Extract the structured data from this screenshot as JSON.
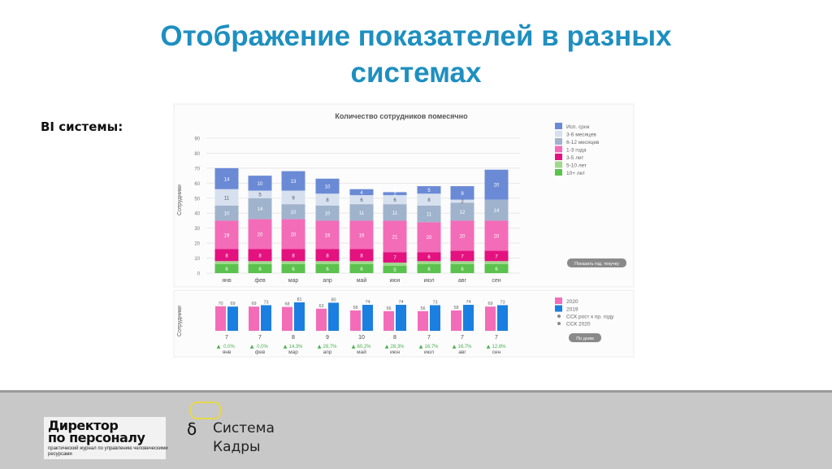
{
  "slide": {
    "title_line1": "Отображение показателей в разных",
    "title_line2": "системах",
    "bi_label": "BI системы:",
    "title_color": "#1e8fc0"
  },
  "chart_data": [
    {
      "type": "bar",
      "stacked": true,
      "title": "Количество сотрудников помесячно",
      "ylabel": "Сотрудники",
      "ylim": [
        0,
        90
      ],
      "yticks": [
        0,
        10,
        20,
        30,
        40,
        50,
        60,
        70,
        80,
        90
      ],
      "grid": true,
      "legend_position": "top-right",
      "categories": [
        "янв",
        "фев",
        "мар",
        "апр",
        "май",
        "июн",
        "июл",
        "авг",
        "сен"
      ],
      "series": [
        {
          "name": "10+ лет",
          "color": "#5cc24e",
          "values": [
            6,
            6,
            6,
            6,
            6,
            5,
            6,
            6,
            6
          ]
        },
        {
          "name": "5-10 лет",
          "color": "#9ed98a",
          "values": [
            2,
            2,
            2,
            2,
            2,
            2,
            2,
            2,
            2
          ]
        },
        {
          "name": "3-5 лет",
          "color": "#e3127f",
          "values": [
            8,
            8,
            8,
            8,
            8,
            7,
            6,
            7,
            7
          ]
        },
        {
          "name": "1-3 года",
          "color": "#f36cb8",
          "values": [
            19,
            20,
            20,
            19,
            19,
            21,
            20,
            20,
            20
          ]
        },
        {
          "name": "6-12 месяцев",
          "color": "#9fb3cc",
          "values": [
            10,
            14,
            10,
            10,
            11,
            11,
            11,
            12,
            14
          ]
        },
        {
          "name": "3-6 месяцев",
          "color": "#d6e0ee",
          "values": [
            11,
            5,
            9,
            8,
            6,
            6,
            8,
            2,
            0
          ]
        },
        {
          "name": "Исп. срок",
          "color": "#6b8ad6",
          "values": [
            14,
            10,
            13,
            10,
            4,
            2,
            5,
            9,
            20
          ]
        }
      ],
      "data_labels": [
        [
          "6",
          "8",
          "19",
          "10",
          "11",
          "14"
        ],
        [
          "6",
          "8",
          "20",
          "14",
          "5",
          "10"
        ],
        [
          "6",
          "8",
          "20",
          "10",
          "9",
          "13"
        ],
        [
          "6",
          "8",
          "19",
          "10",
          "8",
          "10"
        ],
        [
          "6",
          "8",
          "19",
          "11",
          "6",
          "4"
        ],
        [
          "5",
          "7",
          "21",
          "11",
          "6",
          "2"
        ],
        [
          "6",
          "6",
          "20",
          "11",
          "8",
          "5"
        ],
        [
          "6",
          "7",
          "20",
          "12",
          "2",
          "9"
        ],
        [
          "6",
          "7",
          "20",
          "14",
          "",
          "20"
        ]
      ],
      "button_label": "Показать год. текучку"
    },
    {
      "type": "bar",
      "title": "",
      "ylabel": "Сотрудники",
      "categories": [
        "янв",
        "фев",
        "мар",
        "апр",
        "май",
        "июн",
        "июл",
        "авг",
        "сен"
      ],
      "series": [
        {
          "name": "2020",
          "color": "#f36cb8",
          "values": [
            70,
            69,
            68,
            63,
            58,
            56,
            56,
            58,
            69
          ]
        },
        {
          "name": "2019",
          "color": "#1a7fe0",
          "values": [
            69,
            73,
            81,
            80,
            74,
            74,
            73,
            74,
            73
          ]
        }
      ],
      "ssk_growth": [
        "7",
        "7",
        "8",
        "9",
        "10",
        "8",
        "7",
        "7",
        "7"
      ],
      "ssk_pct": [
        "0,0%",
        "0,0%",
        "14,3%",
        "28,7%",
        "60,2%",
        "28,3%",
        "16,7%",
        "16,7%",
        "12,8%"
      ],
      "legend_extra": [
        "ССК рост к пр. году",
        "ССК 2020"
      ],
      "legend_position": "right",
      "button_label": "По дням"
    }
  ],
  "footer": {
    "logo_line1": "Директор",
    "logo_line2": "по персоналу",
    "logo_sub": "практический журнал по управлению человеческими ресурсами",
    "brand_name1": "Система",
    "brand_name2": "Кадры"
  }
}
